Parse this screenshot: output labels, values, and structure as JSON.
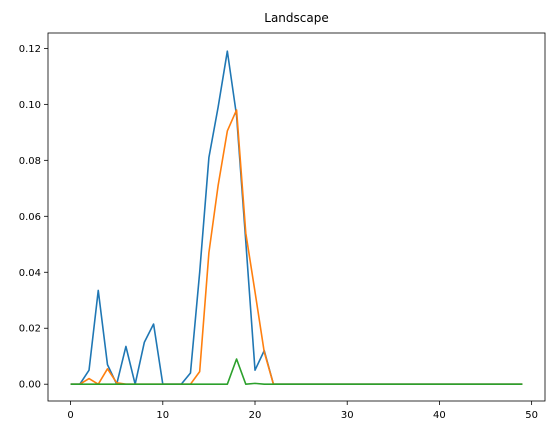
{
  "chart_data": {
    "type": "line",
    "title": "Landscape",
    "xlabel": "",
    "ylabel": "",
    "xlim": [
      -2.45,
      51.45
    ],
    "ylim": [
      -0.006,
      0.1255
    ],
    "xticks": [
      0,
      10,
      20,
      30,
      40,
      50
    ],
    "xtick_labels": [
      "0",
      "10",
      "20",
      "30",
      "40",
      "50"
    ],
    "yticks": [
      0.0,
      0.02,
      0.04,
      0.06,
      0.08,
      0.1,
      0.12
    ],
    "ytick_labels": [
      "0.00",
      "0.02",
      "0.04",
      "0.06",
      "0.08",
      "0.10",
      "0.12"
    ],
    "grid": false,
    "legend": "none",
    "x": [
      0,
      1,
      2,
      3,
      4,
      5,
      6,
      7,
      8,
      9,
      10,
      11,
      12,
      13,
      14,
      15,
      16,
      17,
      18,
      19,
      20,
      21,
      22,
      23,
      24,
      25,
      26,
      27,
      28,
      29,
      30,
      31,
      32,
      33,
      34,
      35,
      36,
      37,
      38,
      39,
      40,
      41,
      42,
      43,
      44,
      45,
      46,
      47,
      48,
      49
    ],
    "series": [
      {
        "color": "#1f77b4",
        "values": [
          0,
          0,
          0.005,
          0.0335,
          0.007,
          0,
          0.0135,
          0,
          0.015,
          0.0215,
          0,
          0,
          0,
          0.004,
          0.04,
          0.081,
          0.099,
          0.119,
          0.096,
          0.051,
          0.005,
          0.012,
          0,
          0,
          0,
          0,
          0,
          0,
          0,
          0,
          0,
          0,
          0,
          0,
          0,
          0,
          0,
          0,
          0,
          0,
          0,
          0,
          0,
          0,
          0,
          0,
          0,
          0,
          0,
          0
        ]
      },
      {
        "color": "#ff7f0e",
        "values": [
          0,
          0,
          0.002,
          0,
          0.0055,
          0.0005,
          0,
          0,
          0,
          0,
          0,
          0,
          0,
          0,
          0.0045,
          0.047,
          0.071,
          0.0905,
          0.098,
          0.054,
          0.033,
          0.0115,
          0,
          0,
          0,
          0,
          0,
          0,
          0,
          0,
          0,
          0,
          0,
          0,
          0,
          0,
          0,
          0,
          0,
          0,
          0,
          0,
          0,
          0,
          0,
          0,
          0,
          0,
          0,
          0
        ]
      },
      {
        "color": "#2ca02c",
        "values": [
          0,
          0,
          0,
          0,
          0,
          0,
          0,
          0,
          0,
          0,
          0,
          0,
          0,
          0,
          0,
          0,
          0,
          0,
          0.009,
          0,
          0.0003,
          0,
          0,
          0,
          0,
          0,
          0,
          0,
          0,
          0,
          0,
          0,
          0,
          0,
          0,
          0,
          0,
          0,
          0,
          0,
          0,
          0,
          0,
          0,
          0,
          0,
          0,
          0,
          0,
          0
        ]
      }
    ]
  }
}
